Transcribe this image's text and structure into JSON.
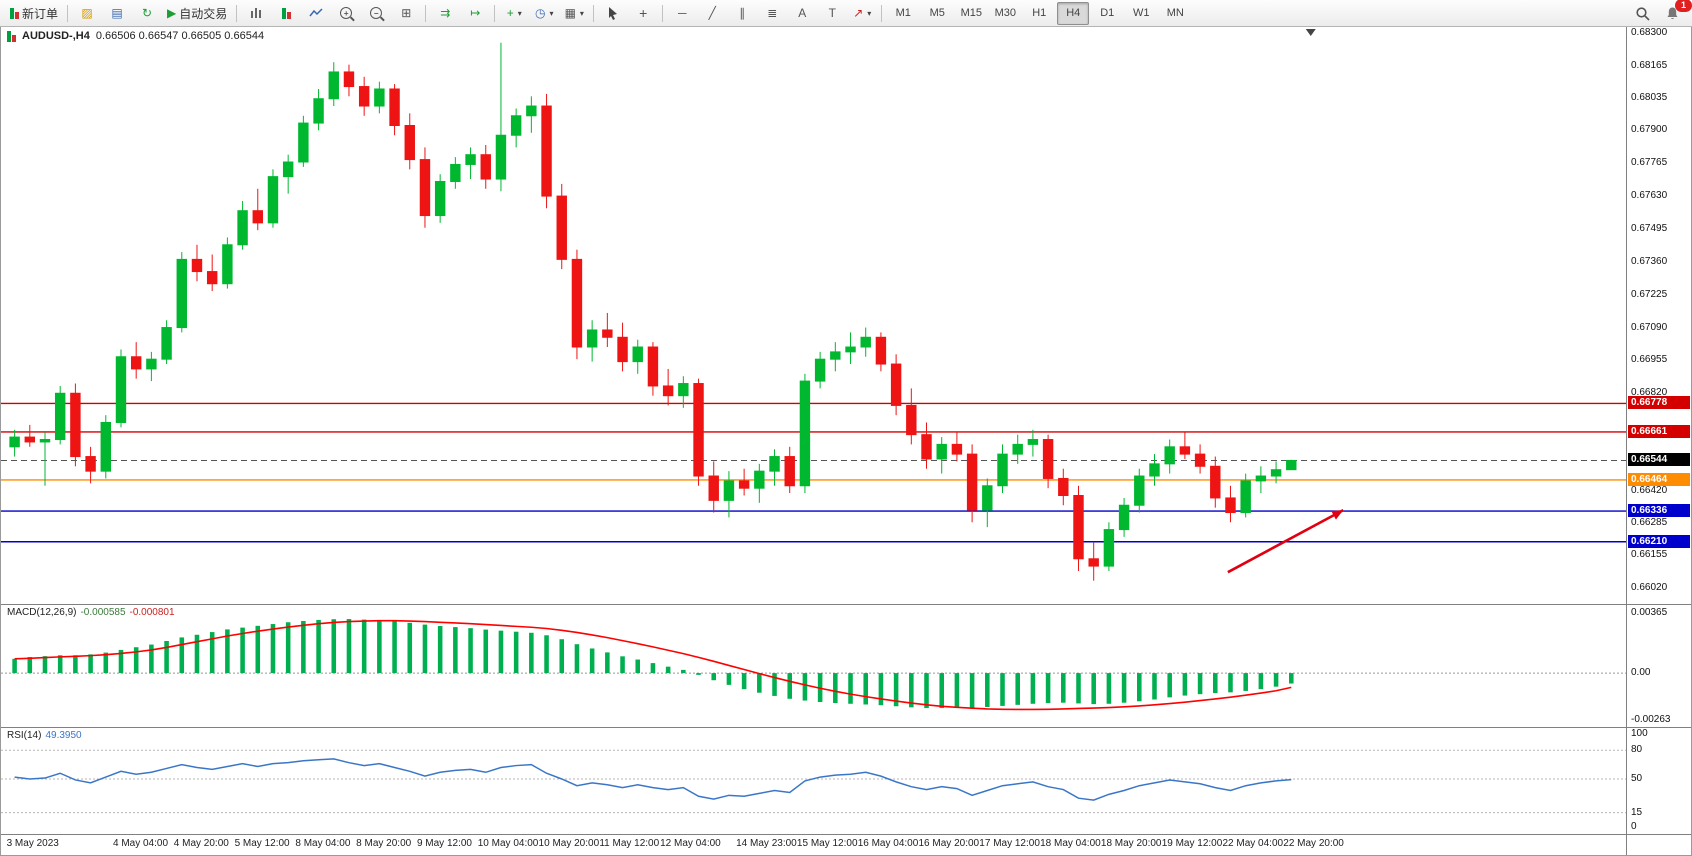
{
  "toolbar": {
    "new_order_label": "新订单",
    "autotrading_label": "自动交易",
    "notification_badge": "1",
    "icons": {
      "metaeditor": "▨",
      "market_watch": "▤",
      "refresh": "↻",
      "autoplay": "▶",
      "tile": "⊞",
      "auto_scroll": "⇉",
      "chart_shift": "↦",
      "indicators": "+",
      "periods": "◷",
      "templates": "▦",
      "dropdown": "▾",
      "crosshair": "+",
      "hline": "─",
      "trendline": "╱",
      "channel": "∥",
      "fibo": "≣",
      "text": "A",
      "label_tool": "T",
      "arrows": "↗",
      "zoom_in": "+",
      "zoom_out": "−"
    },
    "timeframes": [
      {
        "label": "M1",
        "active": false
      },
      {
        "label": "M5",
        "active": false
      },
      {
        "label": "M15",
        "active": false
      },
      {
        "label": "M30",
        "active": false
      },
      {
        "label": "H1",
        "active": false
      },
      {
        "label": "H4",
        "active": true
      },
      {
        "label": "D1",
        "active": false
      },
      {
        "label": "W1",
        "active": false
      },
      {
        "label": "MN",
        "active": false
      }
    ]
  },
  "chart_data": {
    "type": "candlestick",
    "title_symbol": "AUDUSD-,H4",
    "title_ohlc": "0.66506 0.66547 0.66505 0.66544",
    "layout": {
      "plot_fraction": 0.795,
      "shift_marker_frac": 0.806,
      "grid": "off",
      "legend": "none"
    },
    "colors": {
      "up": "#00b830",
      "down": "#ee1414",
      "background": "#ffffff"
    },
    "price_axis": {
      "min": 0.6602,
      "max": 0.683,
      "ticks": [
        "0.68300",
        "0.68165",
        "0.68035",
        "0.67900",
        "0.67765",
        "0.67630",
        "0.67495",
        "0.67360",
        "0.67225",
        "0.67090",
        "0.66955",
        "0.66820",
        "0.66685",
        "0.66550",
        "0.66420",
        "0.66285",
        "0.66155",
        "0.66020"
      ]
    },
    "current_price": {
      "price": 0.66544,
      "label": "0.66544",
      "color": "#000000"
    },
    "levels": [
      {
        "price": 0.66778,
        "label": "0.66778",
        "color": "#d40000",
        "type": "resistance"
      },
      {
        "price": 0.66661,
        "label": "0.66661",
        "color": "#d40000",
        "type": "resistance"
      },
      {
        "price": 0.66464,
        "label": "0.66464",
        "color": "#ff8c00",
        "type": "pivot"
      },
      {
        "price": 0.66336,
        "label": "0.66336",
        "color": "#0000cc",
        "type": "support"
      },
      {
        "price": 0.6621,
        "label": "0.66210",
        "color": "#0000cc",
        "type": "support"
      }
    ],
    "arrow": {
      "from_frac": 0.755,
      "from_price": 0.66085,
      "to_frac": 0.826,
      "to_price": 0.6634,
      "color": "#e00010"
    },
    "time_labels": [
      {
        "t": "3 May 2023",
        "i": 0
      },
      {
        "t": "4 May 04:00",
        "i": 7
      },
      {
        "t": "4 May 20:00",
        "i": 11
      },
      {
        "t": "5 May 12:00",
        "i": 15
      },
      {
        "t": "8 May 04:00",
        "i": 19
      },
      {
        "t": "8 May 20:00",
        "i": 23
      },
      {
        "t": "9 May 12:00",
        "i": 27
      },
      {
        "t": "10 May 04:00",
        "i": 31
      },
      {
        "t": "10 May 20:00",
        "i": 35
      },
      {
        "t": "11 May 12:00",
        "i": 39
      },
      {
        "t": "12 May 04:00",
        "i": 43
      },
      {
        "t": "14 May 23:00",
        "i": 48
      },
      {
        "t": "15 May 12:00",
        "i": 52
      },
      {
        "t": "16 May 04:00",
        "i": 56
      },
      {
        "t": "16 May 20:00",
        "i": 60
      },
      {
        "t": "17 May 12:00",
        "i": 64
      },
      {
        "t": "18 May 04:00",
        "i": 68
      },
      {
        "t": "18 May 20:00",
        "i": 72
      },
      {
        "t": "19 May 12:00",
        "i": 76
      },
      {
        "t": "22 May 04:00",
        "i": 80
      },
      {
        "t": "22 May 20:00",
        "i": 84
      }
    ],
    "candles": [
      [
        0.666,
        0.6667,
        0.6656,
        0.6664
      ],
      [
        0.6664,
        0.6669,
        0.666,
        0.6662
      ],
      [
        0.6662,
        0.6666,
        0.6644,
        0.6663
      ],
      [
        0.6663,
        0.6685,
        0.6661,
        0.6682
      ],
      [
        0.6682,
        0.6686,
        0.6652,
        0.6656
      ],
      [
        0.6656,
        0.666,
        0.6645,
        0.665
      ],
      [
        0.665,
        0.6673,
        0.6647,
        0.667
      ],
      [
        0.667,
        0.67,
        0.6668,
        0.6697
      ],
      [
        0.6697,
        0.6703,
        0.6688,
        0.6692
      ],
      [
        0.6692,
        0.6699,
        0.6687,
        0.6696
      ],
      [
        0.6696,
        0.6712,
        0.6694,
        0.6709
      ],
      [
        0.6709,
        0.674,
        0.6707,
        0.6737
      ],
      [
        0.6737,
        0.6743,
        0.6728,
        0.6732
      ],
      [
        0.6732,
        0.6739,
        0.6724,
        0.6727
      ],
      [
        0.6727,
        0.6746,
        0.6725,
        0.6743
      ],
      [
        0.6743,
        0.6761,
        0.6741,
        0.6757
      ],
      [
        0.6757,
        0.6766,
        0.6749,
        0.6752
      ],
      [
        0.6752,
        0.6774,
        0.675,
        0.6771
      ],
      [
        0.6771,
        0.678,
        0.6764,
        0.6777
      ],
      [
        0.6777,
        0.6796,
        0.6775,
        0.6793
      ],
      [
        0.6793,
        0.6807,
        0.679,
        0.6803
      ],
      [
        0.6803,
        0.6818,
        0.68,
        0.6814
      ],
      [
        0.6814,
        0.6817,
        0.6804,
        0.6808
      ],
      [
        0.6808,
        0.6812,
        0.6796,
        0.68
      ],
      [
        0.68,
        0.681,
        0.6797,
        0.6807
      ],
      [
        0.6807,
        0.6809,
        0.6788,
        0.6792
      ],
      [
        0.6792,
        0.6797,
        0.6774,
        0.6778
      ],
      [
        0.6778,
        0.6783,
        0.675,
        0.6755
      ],
      [
        0.6755,
        0.6772,
        0.6752,
        0.6769
      ],
      [
        0.6769,
        0.6779,
        0.6766,
        0.6776
      ],
      [
        0.6776,
        0.6783,
        0.677,
        0.678
      ],
      [
        0.678,
        0.6784,
        0.6766,
        0.677
      ],
      [
        0.677,
        0.6826,
        0.6765,
        0.6788
      ],
      [
        0.6788,
        0.6799,
        0.6783,
        0.6796
      ],
      [
        0.6796,
        0.6804,
        0.6789,
        0.68
      ],
      [
        0.68,
        0.6805,
        0.6758,
        0.6763
      ],
      [
        0.6763,
        0.6768,
        0.6733,
        0.6737
      ],
      [
        0.6737,
        0.6741,
        0.6696,
        0.6701
      ],
      [
        0.6701,
        0.6712,
        0.6695,
        0.6708
      ],
      [
        0.6708,
        0.6715,
        0.6701,
        0.6705
      ],
      [
        0.6705,
        0.6711,
        0.6691,
        0.6695
      ],
      [
        0.6695,
        0.6704,
        0.669,
        0.6701
      ],
      [
        0.6701,
        0.6703,
        0.6681,
        0.6685
      ],
      [
        0.6685,
        0.6692,
        0.6677,
        0.6681
      ],
      [
        0.6681,
        0.6689,
        0.6676,
        0.6686
      ],
      [
        0.6686,
        0.6688,
        0.6644,
        0.6648
      ],
      [
        0.6648,
        0.6654,
        0.6633,
        0.6638
      ],
      [
        0.6638,
        0.665,
        0.6631,
        0.6646
      ],
      [
        0.6646,
        0.6651,
        0.664,
        0.6643
      ],
      [
        0.6643,
        0.6653,
        0.6637,
        0.665
      ],
      [
        0.665,
        0.6659,
        0.6644,
        0.6656
      ],
      [
        0.6656,
        0.666,
        0.6641,
        0.6644
      ],
      [
        0.6644,
        0.669,
        0.6641,
        0.6687
      ],
      [
        0.6687,
        0.6699,
        0.6684,
        0.6696
      ],
      [
        0.6696,
        0.6703,
        0.6691,
        0.6699
      ],
      [
        0.6699,
        0.6707,
        0.6694,
        0.6701
      ],
      [
        0.6701,
        0.6709,
        0.6697,
        0.6705
      ],
      [
        0.6705,
        0.6707,
        0.6691,
        0.6694
      ],
      [
        0.6694,
        0.6698,
        0.6673,
        0.6677
      ],
      [
        0.6677,
        0.6684,
        0.6661,
        0.6665
      ],
      [
        0.6665,
        0.667,
        0.6651,
        0.6655
      ],
      [
        0.6655,
        0.6664,
        0.6649,
        0.6661
      ],
      [
        0.6661,
        0.6666,
        0.6654,
        0.6657
      ],
      [
        0.6657,
        0.6661,
        0.6629,
        0.6634
      ],
      [
        0.6634,
        0.6647,
        0.6627,
        0.6644
      ],
      [
        0.6644,
        0.6661,
        0.6641,
        0.6657
      ],
      [
        0.6657,
        0.6665,
        0.6653,
        0.6661
      ],
      [
        0.6661,
        0.6667,
        0.6656,
        0.6663
      ],
      [
        0.6663,
        0.6665,
        0.6643,
        0.6647
      ],
      [
        0.6647,
        0.6651,
        0.6636,
        0.664
      ],
      [
        0.664,
        0.6644,
        0.6609,
        0.6614
      ],
      [
        0.6614,
        0.6621,
        0.6605,
        0.6611
      ],
      [
        0.6611,
        0.6629,
        0.6609,
        0.6626
      ],
      [
        0.6626,
        0.6639,
        0.6623,
        0.6636
      ],
      [
        0.6636,
        0.6651,
        0.6633,
        0.6648
      ],
      [
        0.6648,
        0.6657,
        0.6644,
        0.6653
      ],
      [
        0.6653,
        0.6663,
        0.6649,
        0.666
      ],
      [
        0.666,
        0.6666,
        0.6655,
        0.6657
      ],
      [
        0.6657,
        0.6661,
        0.6649,
        0.6652
      ],
      [
        0.6652,
        0.6656,
        0.6635,
        0.6639
      ],
      [
        0.6639,
        0.6644,
        0.6629,
        0.6633
      ],
      [
        0.6633,
        0.6649,
        0.6631,
        0.6646
      ],
      [
        0.6646,
        0.6652,
        0.6641,
        0.6648
      ],
      [
        0.6648,
        0.6654,
        0.6645,
        0.66506
      ],
      [
        0.66506,
        0.66547,
        0.66505,
        0.66544
      ]
    ],
    "macd": {
      "name": "MACD(12,26,9)",
      "value_main": "-0.000585",
      "value_signal": "-0.000801",
      "axis_max": 0.00365,
      "axis_min": -0.00263,
      "axis_max_label": "0.00365",
      "axis_zero_label": "0.00",
      "axis_min_label": "-0.00263",
      "hist_color": "#00b050",
      "signal_color": "#ff0000",
      "hist": [
        0.0008,
        0.0009,
        0.00095,
        0.001,
        0.001,
        0.00105,
        0.00115,
        0.0013,
        0.00145,
        0.0016,
        0.0018,
        0.002,
        0.00215,
        0.0023,
        0.00245,
        0.00255,
        0.00265,
        0.00275,
        0.00285,
        0.00292,
        0.00298,
        0.00302,
        0.00303,
        0.003,
        0.00296,
        0.0029,
        0.00282,
        0.00272,
        0.00264,
        0.00258,
        0.00252,
        0.00244,
        0.00238,
        0.00232,
        0.00226,
        0.00212,
        0.0019,
        0.00162,
        0.00138,
        0.00116,
        0.00094,
        0.00076,
        0.00056,
        0.00036,
        0.00018,
        -0.0001,
        -0.0004,
        -0.00066,
        -0.0009,
        -0.0011,
        -0.00128,
        -0.00144,
        -0.00154,
        -0.00162,
        -0.00168,
        -0.00172,
        -0.00176,
        -0.0018,
        -0.00186,
        -0.00192,
        -0.00196,
        -0.00196,
        -0.00194,
        -0.00194,
        -0.0019,
        -0.00184,
        -0.00178,
        -0.00172,
        -0.00168,
        -0.00166,
        -0.0017,
        -0.00174,
        -0.00172,
        -0.00166,
        -0.00158,
        -0.00148,
        -0.00136,
        -0.00126,
        -0.00118,
        -0.00112,
        -0.00108,
        -0.001,
        -0.0009,
        -0.00076,
        -0.000585
      ],
      "signal": [
        0.0008,
        0.00083,
        0.00087,
        0.00091,
        0.00094,
        0.00098,
        0.00103,
        0.0011,
        0.00119,
        0.0013,
        0.00144,
        0.0016,
        0.00176,
        0.00192,
        0.00208,
        0.00222,
        0.00235,
        0.00247,
        0.00258,
        0.00268,
        0.00277,
        0.00284,
        0.00289,
        0.00292,
        0.00294,
        0.00294,
        0.00292,
        0.00289,
        0.00285,
        0.00281,
        0.00277,
        0.00272,
        0.00267,
        0.00262,
        0.00257,
        0.0025,
        0.0024,
        0.00228,
        0.00214,
        0.00199,
        0.00182,
        0.00165,
        0.00147,
        0.00128,
        0.00109,
        0.00088,
        0.00066,
        0.00043,
        0.0002,
        -3e-05,
        -0.00025,
        -0.00046,
        -0.00066,
        -0.00085,
        -0.00102,
        -0.00118,
        -0.00132,
        -0.00145,
        -0.00157,
        -0.00168,
        -0.00178,
        -0.00186,
        -0.00192,
        -0.00197,
        -0.00201,
        -0.00203,
        -0.00204,
        -0.00204,
        -0.00203,
        -0.00201,
        -0.00198,
        -0.00196,
        -0.00193,
        -0.00189,
        -0.00184,
        -0.00178,
        -0.00171,
        -0.00163,
        -0.00154,
        -0.00145,
        -0.00135,
        -0.00124,
        -0.00112,
        -0.00099,
        -0.000801
      ]
    },
    "rsi": {
      "name": "RSI(14)",
      "value": "49.3950",
      "line_color": "#3a76c8",
      "levels": [
        80,
        50,
        15
      ],
      "axis_labels": [
        "100",
        "80",
        "50",
        "15",
        "0"
      ],
      "values": [
        52,
        50,
        51,
        56,
        49,
        46,
        52,
        58,
        55,
        57,
        61,
        65,
        62,
        60,
        63,
        66,
        63,
        66,
        67,
        69,
        70,
        71,
        67,
        64,
        66,
        62,
        58,
        53,
        57,
        59,
        60,
        57,
        62,
        64,
        65,
        56,
        50,
        43,
        46,
        44,
        41,
        44,
        41,
        39,
        41,
        32,
        29,
        33,
        32,
        35,
        38,
        36,
        48,
        52,
        54,
        55,
        57,
        53,
        47,
        42,
        39,
        42,
        40,
        33,
        38,
        43,
        45,
        47,
        42,
        39,
        30,
        28,
        34,
        38,
        43,
        46,
        49,
        47,
        45,
        41,
        38,
        43,
        46,
        48,
        49.4
      ]
    }
  }
}
